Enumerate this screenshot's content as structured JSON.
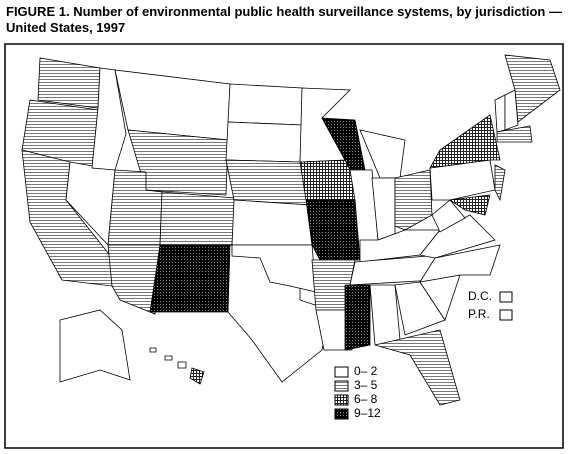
{
  "title": "FIGURE 1. Number of environmental public health surveillance systems, by jurisdiction — United States, 1997",
  "legend": [
    {
      "label": "0– 2"
    },
    {
      "label": "3– 5"
    },
    {
      "label": "6– 8"
    },
    {
      "label": "9–12"
    }
  ],
  "territories": [
    {
      "label": "D.C."
    },
    {
      "label": "P.R."
    }
  ]
}
